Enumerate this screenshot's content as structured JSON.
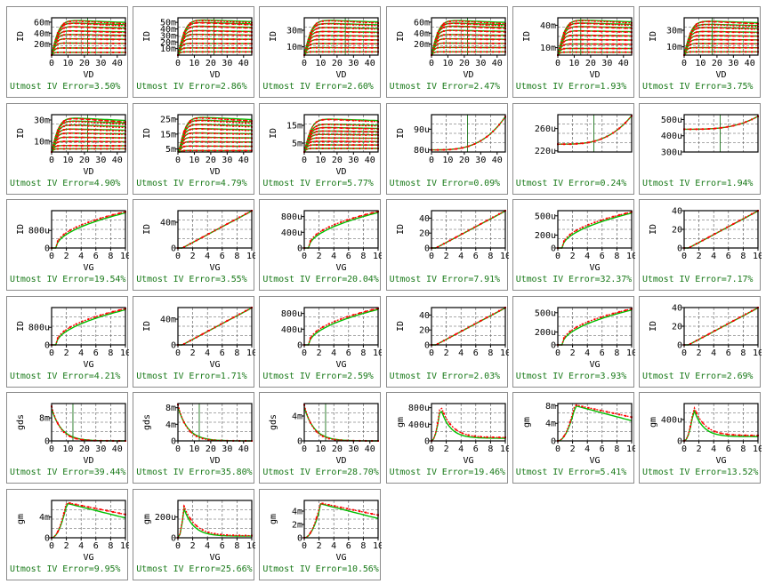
{
  "caption_prefix": "Utmost IV",
  "colors": {
    "measured": "#ff0000",
    "simulated": "#00c000",
    "frame": "#000000",
    "grid": "#555555",
    "caption": "#1a7a1a",
    "marker_line": "#006400"
  },
  "chart_data": [
    {
      "type": "line",
      "family": "output",
      "xlabel": "VD",
      "ylabel": "ID",
      "xlim": [
        0,
        45
      ],
      "xticks": [
        "0",
        "10",
        "20",
        "30",
        "40"
      ],
      "yticks": [
        "20m",
        "40m",
        "60m"
      ],
      "ytick_values": [
        20,
        40,
        60
      ],
      "ylim": [
        0,
        68
      ],
      "sat": [
        5,
        13,
        22,
        30,
        38,
        45,
        53,
        60,
        65
      ],
      "droop": 0.12,
      "cursor": 22,
      "error_label": "Utmost IV Error=3.50%"
    },
    {
      "type": "line",
      "family": "output",
      "xlabel": "VD",
      "ylabel": "ID",
      "xlim": [
        0,
        45
      ],
      "xticks": [
        "0",
        "10",
        "20",
        "30",
        "40"
      ],
      "yticks": [
        "10m",
        "20m",
        "30m",
        "40m",
        "50m"
      ],
      "ytick_values": [
        10,
        20,
        30,
        40,
        50
      ],
      "ylim": [
        0,
        57
      ],
      "sat": [
        5,
        11,
        18,
        25,
        32,
        38,
        45,
        51,
        55
      ],
      "droop": 0.1,
      "cursor": 22,
      "error_label": "Utmost IV Error=2.86%"
    },
    {
      "type": "line",
      "family": "output",
      "xlabel": "VD",
      "ylabel": "ID",
      "xlim": [
        0,
        45
      ],
      "xticks": [
        "0",
        "10",
        "20",
        "30",
        "40"
      ],
      "yticks": [
        "10m",
        "30m"
      ],
      "ytick_values": [
        10,
        30
      ],
      "ylim": [
        0,
        45
      ],
      "sat": [
        4,
        9,
        14,
        19,
        24,
        29,
        34,
        39,
        43
      ],
      "droop": 0.1,
      "cursor": 25,
      "error_label": "Utmost IV Error=2.60%"
    },
    {
      "type": "line",
      "family": "output",
      "xlabel": "VD",
      "ylabel": "ID",
      "xlim": [
        0,
        45
      ],
      "xticks": [
        "0",
        "10",
        "20",
        "30",
        "40"
      ],
      "yticks": [
        "20m",
        "40m",
        "60m"
      ],
      "ytick_values": [
        20,
        40,
        60
      ],
      "ylim": [
        0,
        68
      ],
      "sat": [
        6,
        14,
        22,
        30,
        38,
        46,
        54,
        60,
        65
      ],
      "droop": 0.12,
      "cursor": 22,
      "error_label": "Utmost IV Error=2.47%"
    },
    {
      "type": "line",
      "family": "output",
      "xlabel": "VD",
      "ylabel": "ID",
      "xlim": [
        0,
        45
      ],
      "xticks": [
        "0",
        "10",
        "20",
        "30",
        "40"
      ],
      "yticks": [
        "10m",
        "40m"
      ],
      "ytick_values": [
        10,
        40
      ],
      "ylim": [
        0,
        50
      ],
      "sat": [
        4,
        9,
        15,
        21,
        27,
        33,
        39,
        44,
        48
      ],
      "droop": 0.1,
      "cursor": 14,
      "error_label": "Utmost IV Error=1.93%"
    },
    {
      "type": "line",
      "family": "output",
      "xlabel": "VD",
      "ylabel": "ID",
      "xlim": [
        0,
        45
      ],
      "xticks": [
        "0",
        "10",
        "20",
        "30",
        "40"
      ],
      "yticks": [
        "10m",
        "30m"
      ],
      "ytick_values": [
        10,
        30
      ],
      "ylim": [
        0,
        45
      ],
      "sat": [
        4,
        9,
        14,
        19,
        24,
        29,
        34,
        38,
        42
      ],
      "droop": 0.1,
      "cursor": 17,
      "error_label": "Utmost IV Error=3.75%"
    },
    {
      "type": "line",
      "family": "output",
      "xlabel": "VD",
      "ylabel": "ID",
      "xlim": [
        0,
        45
      ],
      "xticks": [
        "0",
        "10",
        "20",
        "30",
        "40"
      ],
      "yticks": [
        "10m",
        "30m"
      ],
      "ytick_values": [
        10,
        30
      ],
      "ylim": [
        0,
        35
      ],
      "sat": [
        3,
        6,
        10,
        14,
        18,
        22,
        26,
        30,
        33
      ],
      "droop": 0.15,
      "cursor": 22,
      "error_label": "Utmost IV Error=4.90%"
    },
    {
      "type": "line",
      "family": "output",
      "xlabel": "VD",
      "ylabel": "ID",
      "xlim": [
        0,
        45
      ],
      "xticks": [
        "0",
        "10",
        "20",
        "30",
        "40"
      ],
      "yticks": [
        "5m",
        "15m",
        "25m"
      ],
      "ytick_values": [
        5,
        15,
        25
      ],
      "ylim": [
        3,
        28
      ],
      "sat": [
        4,
        7,
        10,
        13,
        16,
        19,
        22,
        25,
        27
      ],
      "droop": 0.12,
      "cursor": null,
      "error_label": "Utmost IV Error=4.79%"
    },
    {
      "type": "line",
      "family": "output",
      "xlabel": "VD",
      "ylabel": "ID",
      "xlim": [
        0,
        45
      ],
      "xticks": [
        "0",
        "10",
        "20",
        "30",
        "40"
      ],
      "yticks": [
        "5m",
        "15m"
      ],
      "ytick_values": [
        5,
        15
      ],
      "ylim": [
        0,
        21
      ],
      "sat": [
        2,
        4,
        6,
        8,
        10,
        12,
        14,
        16,
        19
      ],
      "droop": 0.1,
      "cursor": null,
      "error_label": "Utmost IV Error=5.77%"
    },
    {
      "type": "line",
      "family": "single",
      "shape": "rise",
      "xlabel": "",
      "ylabel": "ID",
      "xlim": [
        0,
        45
      ],
      "xticks": [
        "0",
        "10",
        "20",
        "30",
        "40"
      ],
      "yticks": [
        "80u",
        "90u"
      ],
      "ytick_values": [
        80,
        90
      ],
      "ylim": [
        79,
        97
      ],
      "y0": 80,
      "y1": 96,
      "cursor": 22,
      "error_label": "Utmost IV Error=0.09%"
    },
    {
      "type": "line",
      "family": "single",
      "shape": "rise",
      "xlabel": "",
      "ylabel": "",
      "xlim": [
        0,
        45
      ],
      "xticks": [],
      "yticks": [
        "220u",
        "260u"
      ],
      "ytick_values": [
        220,
        260
      ],
      "ylim": [
        218,
        285
      ],
      "y0": 232,
      "y1": 283,
      "cursor": 22,
      "error_label": "Utmost IV Error=0.24%"
    },
    {
      "type": "line",
      "family": "single",
      "shape": "rise",
      "xlabel": "",
      "ylabel": "",
      "xlim": [
        0,
        45
      ],
      "xticks": [],
      "yticks": [
        "300u",
        "400u",
        "500u"
      ],
      "ytick_values": [
        300,
        400,
        500
      ],
      "ylim": [
        300,
        530
      ],
      "y0": 440,
      "y1": 520,
      "cursor": 22,
      "error_label": "Utmost IV Error=1.94%"
    },
    {
      "type": "line",
      "family": "transfer",
      "shape": "sqrt",
      "xlabel": "VG",
      "ylabel": "ID",
      "xlim": [
        0,
        10
      ],
      "xticks": [
        "0",
        "2",
        "4",
        "6",
        "8",
        "10"
      ],
      "yticks": [
        "0",
        "800u"
      ],
      "ytick_values": [
        0,
        800
      ],
      "ylim": [
        0,
        1700
      ],
      "ymax": 1650,
      "error_label": "Utmost IV Error=19.54%"
    },
    {
      "type": "line",
      "family": "transfer",
      "shape": "linear",
      "xlabel": "VG",
      "ylabel": "ID",
      "xlim": [
        0,
        10
      ],
      "xticks": [
        "0",
        "2",
        "4",
        "6",
        "8",
        "10"
      ],
      "yticks": [
        "0",
        "40m"
      ],
      "ytick_values": [
        0,
        40
      ],
      "ylim": [
        0,
        58
      ],
      "ymax": 58,
      "error_label": "Utmost IV Error=3.55%"
    },
    {
      "type": "line",
      "family": "transfer",
      "shape": "sqrt",
      "xlabel": "VG",
      "ylabel": "",
      "xlim": [
        0,
        10
      ],
      "xticks": [
        "0",
        "2",
        "4",
        "6",
        "8",
        "10"
      ],
      "yticks": [
        "0",
        "400u",
        "800u"
      ],
      "ytick_values": [
        0,
        400,
        800
      ],
      "ylim": [
        0,
        950
      ],
      "ymax": 930,
      "error_label": "Utmost IV Error=20.04%"
    },
    {
      "type": "line",
      "family": "transfer",
      "shape": "linear",
      "xlabel": "",
      "ylabel": "ID",
      "xlim": [
        0,
        10
      ],
      "xticks": [
        "0",
        "2",
        "4",
        "6",
        "8",
        "10"
      ],
      "yticks": [
        "0",
        "20",
        "40"
      ],
      "ytick_values": [
        0,
        20,
        40
      ],
      "ylim": [
        0,
        50
      ],
      "ymax": 50,
      "error_label": "Utmost IV Error=7.91%"
    },
    {
      "type": "line",
      "family": "transfer",
      "shape": "sqrt",
      "xlabel": "VG",
      "ylabel": "",
      "xlim": [
        0,
        10
      ],
      "xticks": [
        "0",
        "2",
        "4",
        "6",
        "8",
        "10"
      ],
      "yticks": [
        "0",
        "200u",
        "500u"
      ],
      "ytick_values": [
        0,
        200,
        500
      ],
      "ylim": [
        0,
        580
      ],
      "ymax": 560,
      "error_label": "Utmost IV Error=32.37%"
    },
    {
      "type": "line",
      "family": "transfer",
      "shape": "linear",
      "xlabel": "",
      "ylabel": "ID",
      "xlim": [
        0,
        10
      ],
      "xticks": [
        "0",
        "2",
        "4",
        "6",
        "8",
        "10"
      ],
      "yticks": [
        "0",
        "20",
        "40"
      ],
      "ytick_values": [
        0,
        20,
        40
      ],
      "ylim": [
        0,
        40
      ],
      "ymax": 40,
      "error_label": "Utmost IV Error=7.17%"
    },
    {
      "type": "line",
      "family": "transfer",
      "shape": "sqrt",
      "xlabel": "VG",
      "ylabel": "ID",
      "xlim": [
        0,
        10
      ],
      "xticks": [
        "0",
        "2",
        "4",
        "6",
        "8",
        "10"
      ],
      "yticks": [
        "0",
        "800u"
      ],
      "ytick_values": [
        0,
        800
      ],
      "ylim": [
        0,
        1700
      ],
      "ymax": 1650,
      "error_label": "Utmost IV Error=4.21%"
    },
    {
      "type": "line",
      "family": "transfer",
      "shape": "linear",
      "xlabel": "VG",
      "ylabel": "ID",
      "xlim": [
        0,
        10
      ],
      "xticks": [
        "0",
        "2",
        "4",
        "6",
        "8",
        "10"
      ],
      "yticks": [
        "0",
        "40m"
      ],
      "ytick_values": [
        0,
        40
      ],
      "ylim": [
        0,
        58
      ],
      "ymax": 58,
      "error_label": "Utmost IV Error=1.71%"
    },
    {
      "type": "line",
      "family": "transfer",
      "shape": "sqrt",
      "xlabel": "VG",
      "ylabel": "",
      "xlim": [
        0,
        10
      ],
      "xticks": [
        "0",
        "2",
        "4",
        "6",
        "8",
        "10"
      ],
      "yticks": [
        "0",
        "400u",
        "800u"
      ],
      "ytick_values": [
        0,
        400,
        800
      ],
      "ylim": [
        0,
        950
      ],
      "ymax": 930,
      "error_label": "Utmost IV Error=2.59%"
    },
    {
      "type": "line",
      "family": "transfer",
      "shape": "linear",
      "xlabel": "",
      "ylabel": "ID",
      "xlim": [
        0,
        10
      ],
      "xticks": [
        "0",
        "2",
        "4",
        "6",
        "8",
        "10"
      ],
      "yticks": [
        "0",
        "20",
        "40"
      ],
      "ytick_values": [
        0,
        20,
        40
      ],
      "ylim": [
        0,
        50
      ],
      "ymax": 50,
      "error_label": "Utmost IV Error=2.03%"
    },
    {
      "type": "line",
      "family": "transfer",
      "shape": "sqrt",
      "xlabel": "VG",
      "ylabel": "",
      "xlim": [
        0,
        10
      ],
      "xticks": [
        "0",
        "2",
        "4",
        "6",
        "8",
        "10"
      ],
      "yticks": [
        "0",
        "200u",
        "500u"
      ],
      "ytick_values": [
        0,
        200,
        500
      ],
      "ylim": [
        0,
        580
      ],
      "ymax": 560,
      "error_label": "Utmost IV Error=3.93%"
    },
    {
      "type": "line",
      "family": "transfer",
      "shape": "linear",
      "xlabel": "",
      "ylabel": "ID",
      "xlim": [
        0,
        10
      ],
      "xticks": [
        "0",
        "2",
        "4",
        "6",
        "8",
        "10"
      ],
      "yticks": [
        "0",
        "20",
        "40"
      ],
      "ytick_values": [
        0,
        20,
        40
      ],
      "ylim": [
        0,
        40
      ],
      "ymax": 40,
      "error_label": "Utmost IV Error=2.69%"
    },
    {
      "type": "line",
      "family": "decay",
      "xlabel": "VD",
      "ylabel": "gds",
      "xlim": [
        0,
        45
      ],
      "xticks": [
        "0",
        "10",
        "20",
        "30",
        "40"
      ],
      "yticks": [
        "0",
        "8m"
      ],
      "ytick_values": [
        0,
        8
      ],
      "ylim": [
        0,
        13
      ],
      "y0": 12,
      "cursor": 13,
      "error_label": "Utmost IV Error=39.44%"
    },
    {
      "type": "line",
      "family": "decay",
      "xlabel": "VD",
      "ylabel": "gds",
      "xlim": [
        0,
        45
      ],
      "xticks": [
        "0",
        "10",
        "20",
        "30",
        "40"
      ],
      "yticks": [
        "0",
        "4m",
        "8m"
      ],
      "ytick_values": [
        0,
        4,
        8
      ],
      "ylim": [
        0,
        9
      ],
      "y0": 8.8,
      "cursor": 13,
      "error_label": "Utmost IV Error=35.80%"
    },
    {
      "type": "line",
      "family": "decay",
      "xlabel": "VD",
      "ylabel": "gds",
      "xlim": [
        0,
        45
      ],
      "xticks": [
        "0",
        "10",
        "20",
        "30",
        "40"
      ],
      "yticks": [
        "0",
        "4m"
      ],
      "ytick_values": [
        0,
        4
      ],
      "ylim": [
        0,
        6
      ],
      "y0": 5.8,
      "cursor": 13,
      "error_label": "Utmost IV Error=28.70%"
    },
    {
      "type": "line",
      "family": "peak",
      "shape": "sharp",
      "xlabel": "VG",
      "ylabel": "gm",
      "xlim": [
        0,
        10
      ],
      "xticks": [
        "0",
        "2",
        "4",
        "6",
        "8",
        "10"
      ],
      "yticks": [
        "0",
        "400u",
        "800u"
      ],
      "ytick_values": [
        0,
        400,
        800
      ],
      "ylim": [
        0,
        900
      ],
      "peak": 880,
      "tail": 80,
      "peakx": 1.2,
      "cursor": null,
      "error_label": "Utmost IV Error=19.46%"
    },
    {
      "type": "line",
      "family": "peak",
      "shape": "broad",
      "xlabel": "VG",
      "ylabel": "gm",
      "xlim": [
        0,
        10
      ],
      "xticks": [
        "0",
        "2",
        "4",
        "6",
        "8",
        "10"
      ],
      "yticks": [
        "0",
        "4m",
        "8m"
      ],
      "ytick_values": [
        0,
        4,
        8
      ],
      "ylim": [
        0,
        8.5
      ],
      "peak": 8.2,
      "tail": 5.4,
      "peakx": 2.3,
      "cursor": null,
      "error_label": "Utmost IV Error=5.41%"
    },
    {
      "type": "line",
      "family": "peak",
      "shape": "sharp",
      "xlabel": "VG",
      "ylabel": "gm",
      "xlim": [
        0,
        10
      ],
      "xticks": [
        "0",
        "2",
        "4",
        "6",
        "8",
        "10"
      ],
      "yticks": [
        "0",
        "400u"
      ],
      "ytick_values": [
        0,
        400
      ],
      "ylim": [
        0,
        700
      ],
      "peak": 650,
      "tail": 100,
      "peakx": 1.3,
      "cursor": null,
      "error_label": "Utmost IV Error=13.52%"
    },
    {
      "type": "line",
      "family": "peak",
      "shape": "broad",
      "xlabel": "VG",
      "ylabel": "gm",
      "xlim": [
        0,
        10
      ],
      "xticks": [
        "0",
        "2",
        "4",
        "6",
        "8",
        "10"
      ],
      "yticks": [
        "0",
        "4m"
      ],
      "ytick_values": [
        0,
        4
      ],
      "ylim": [
        0,
        7.2
      ],
      "peak": 6.8,
      "tail": 4.5,
      "peakx": 2.0,
      "cursor": null,
      "error_label": "Utmost IV Error=9.95%"
    },
    {
      "type": "line",
      "family": "peak",
      "shape": "sharp",
      "xlabel": "VG",
      "ylabel": "gm",
      "xlim": [
        0,
        10
      ],
      "xticks": [
        "0",
        "2",
        "4",
        "6",
        "8",
        "10"
      ],
      "yticks": [
        "0",
        "200u"
      ],
      "ytick_values": [
        0,
        200
      ],
      "ylim": [
        0,
        360
      ],
      "peak": 310,
      "tail": 20,
      "peakx": 0.8,
      "cursor": null,
      "error_label": "Utmost IV Error=25.66%"
    },
    {
      "type": "line",
      "family": "peak",
      "shape": "broad",
      "xlabel": "VG",
      "ylabel": "gm",
      "xlim": [
        0,
        10
      ],
      "xticks": [
        "0",
        "2",
        "4",
        "6",
        "8",
        "10"
      ],
      "yticks": [
        "0",
        "2m",
        "4m"
      ],
      "ytick_values": [
        0,
        2,
        4
      ],
      "ylim": [
        0,
        5.6
      ],
      "peak": 5.2,
      "tail": 3.4,
      "peakx": 2.2,
      "cursor": null,
      "error_label": "Utmost IV Error=10.56%"
    }
  ]
}
